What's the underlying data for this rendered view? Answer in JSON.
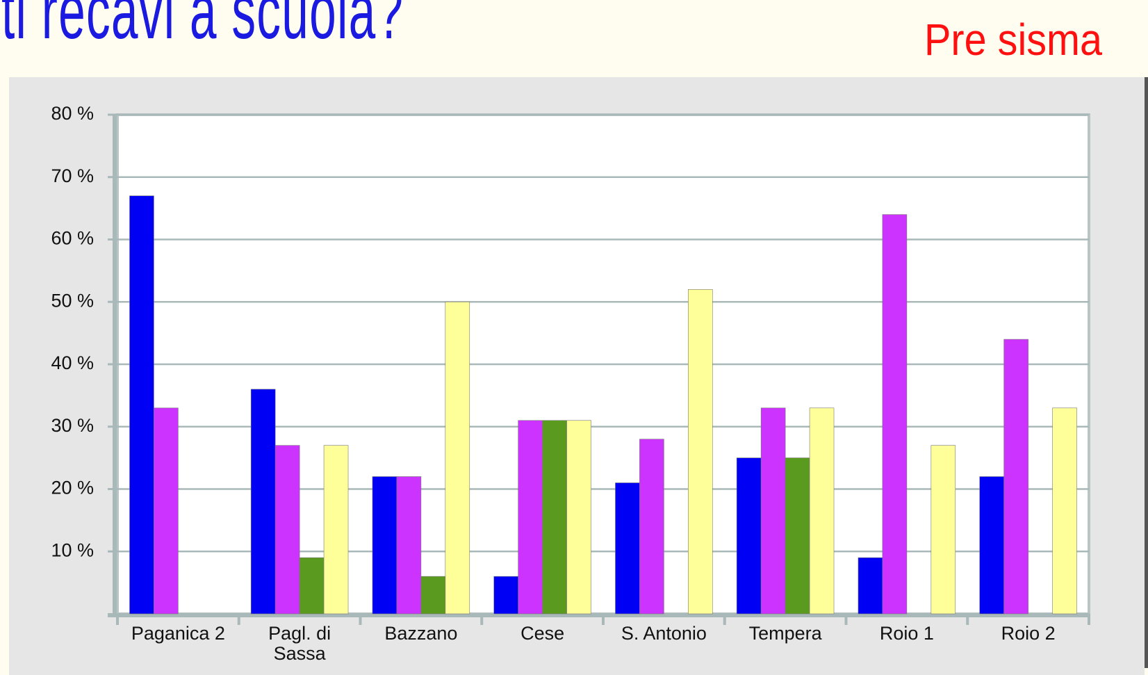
{
  "title": "ti recavi a scuola?",
  "subtitle": "Pre sisma",
  "chart_data": {
    "type": "bar",
    "categories": [
      "Paganica 2",
      "Pagl. di Sassa",
      "Bazzano",
      "Cese",
      "S. Antonio",
      "Tempera",
      "Roio 1",
      "Roio 2"
    ],
    "series": [
      {
        "color": "#0000f5",
        "values": [
          67,
          36,
          22,
          6,
          21,
          25,
          9,
          22
        ]
      },
      {
        "color": "#cc33ff",
        "values": [
          33,
          27,
          22,
          31,
          28,
          33,
          64,
          44
        ]
      },
      {
        "color": "#5a9a1e",
        "values": [
          0,
          9,
          6,
          31,
          0,
          25,
          0,
          0
        ]
      },
      {
        "color": "#ffff99",
        "values": [
          0,
          27,
          50,
          31,
          52,
          33,
          27,
          33
        ]
      }
    ],
    "ylim": [
      0,
      80
    ],
    "yticks": [
      {
        "value": 10,
        "label": "10 %"
      },
      {
        "value": 20,
        "label": "20 %"
      },
      {
        "value": 30,
        "label": "30 %"
      },
      {
        "value": 40,
        "label": "40 %"
      },
      {
        "value": 50,
        "label": "50 %"
      },
      {
        "value": 60,
        "label": "60 %"
      },
      {
        "value": 70,
        "label": "70 %"
      },
      {
        "value": 80,
        "label": "80 %"
      }
    ],
    "grid": true
  }
}
